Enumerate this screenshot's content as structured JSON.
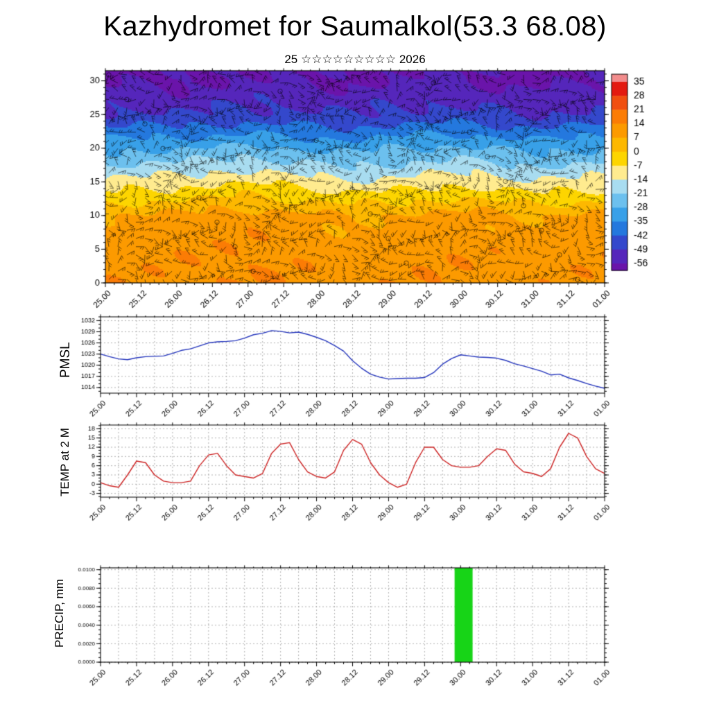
{
  "title": "Kazhydromet for Saumalkol(53.3 68.08)",
  "subtitle": "25 ☆☆☆☆☆☆☆☆☆ 2026",
  "time_axis": {
    "labels": [
      "25.00",
      "25.12",
      "26.00",
      "26.12",
      "27.00",
      "27.12",
      "28.00",
      "28.12",
      "29.00",
      "29.12",
      "30.00",
      "30.12",
      "31.00",
      "31.12",
      "01.00"
    ],
    "label_hours": [
      0,
      12,
      24,
      36,
      48,
      60,
      72,
      84,
      96,
      108,
      120,
      132,
      144,
      156,
      168
    ],
    "minor_step_hours": 3,
    "grid_step_hours": 6,
    "total_hours": 168
  },
  "chart_data": [
    {
      "id": "wind_temperature_section",
      "type": "heatmap",
      "description": "Time-height section, shading = temperature (C), overlaid wind barbs",
      "x_hours": [
        0,
        12,
        24,
        36,
        48,
        60,
        72,
        84,
        96,
        108,
        120,
        132,
        144,
        156,
        168
      ],
      "levels": [
        0,
        5,
        10,
        15,
        20,
        25,
        30
      ],
      "values_by_level": [
        [
          12,
          12,
          13,
          13,
          14,
          13,
          12,
          11,
          12,
          13,
          13,
          12,
          11,
          12,
          13
        ],
        [
          10,
          11,
          12,
          12,
          13,
          12,
          11,
          10,
          11,
          12,
          12,
          11,
          10,
          11,
          12
        ],
        [
          7,
          8,
          9,
          10,
          11,
          10,
          8,
          7,
          8,
          9,
          10,
          9,
          7,
          8,
          9
        ],
        [
          -12,
          -11,
          -10,
          -8,
          -7,
          -9,
          -11,
          -13,
          -12,
          -10,
          -9,
          -11,
          -13,
          -12,
          -11
        ],
        [
          -30,
          -29,
          -28,
          -27,
          -26,
          -28,
          -29,
          -30,
          -28,
          -27,
          -26,
          -28,
          -30,
          -29,
          -28
        ],
        [
          -48,
          -47,
          -49,
          -48,
          -46,
          -47,
          -48,
          -49,
          -47,
          -46,
          -47,
          -48,
          -49,
          -48,
          -47
        ],
        [
          -57,
          -57,
          -58,
          -56,
          -55,
          -56,
          -57,
          -57,
          -56,
          -55,
          -56,
          -57,
          -58,
          -57,
          -56
        ]
      ],
      "y_ticks": [
        0,
        5,
        10,
        15,
        20,
        25,
        30
      ],
      "y_range": [
        0,
        31.5
      ],
      "y_minor_step": 1,
      "y_label_size": 13,
      "y_tick_format": "int",
      "colorbar": {
        "boundaries": [
          35,
          28,
          21,
          14,
          7,
          0,
          -7,
          -14,
          -21,
          -28,
          -35,
          -42,
          -49,
          -56
        ],
        "colors": [
          "#f28c8c",
          "#e31a10",
          "#f04f10",
          "#fb7c05",
          "#fc9a00",
          "#fdb800",
          "#fdd500",
          "#ffeb8f",
          "#a8dcf0",
          "#6cc0ee",
          "#38a0e8",
          "#2478de",
          "#3448cc",
          "#5526bb",
          "#6a14aa"
        ]
      }
    },
    {
      "id": "pmsl",
      "type": "line",
      "label": "PMSL",
      "line_color": "#2233bb",
      "x_start_hour": 0,
      "x_step_hours": 3,
      "values": [
        1023,
        1022.3,
        1021.7,
        1021.5,
        1022,
        1022.3,
        1022.4,
        1022.5,
        1023.2,
        1024,
        1024.4,
        1025.2,
        1026,
        1026.3,
        1026.4,
        1026.6,
        1027.3,
        1028.2,
        1028.6,
        1029.3,
        1029.1,
        1028.7,
        1028.9,
        1028.3,
        1027.5,
        1026.6,
        1025.3,
        1023.8,
        1021.2,
        1019.2,
        1017.6,
        1016.8,
        1016.3,
        1016.4,
        1016.5,
        1016.5,
        1016.7,
        1018,
        1020.3,
        1021.8,
        1022.8,
        1022.5,
        1022.2,
        1022.1,
        1021.9,
        1021.3,
        1020.4,
        1019.8,
        1019.1,
        1018.4,
        1017.4,
        1017.6,
        1016.6,
        1015.9,
        1015.1,
        1014.4,
        1013.8
      ],
      "y_ticks": [
        1032,
        1029,
        1026,
        1023,
        1020,
        1017,
        1014
      ],
      "y_range": [
        1012.5,
        1033
      ],
      "y_minor_step": 1,
      "y_label_size": 9,
      "y_tick_format": "int"
    },
    {
      "id": "temp_2m",
      "type": "line",
      "label": "TEMP at 2 M",
      "line_color": "#cc2222",
      "x_start_hour": 0,
      "x_step_hours": 3,
      "values": [
        0.5,
        -0.5,
        -1,
        3,
        7.5,
        7,
        3,
        1,
        0.5,
        0.5,
        1,
        6,
        9.5,
        10,
        6,
        3,
        2.5,
        2,
        3.5,
        10,
        13,
        13.5,
        8,
        4,
        2.5,
        2,
        4,
        11,
        14.5,
        13,
        7,
        3,
        0.5,
        -1,
        0,
        7,
        12,
        12,
        8,
        6,
        5.5,
        5.5,
        6,
        9,
        11.5,
        11,
        6.5,
        4,
        3.5,
        2.5,
        5,
        12,
        16.5,
        15,
        9,
        5,
        3.5
      ],
      "y_ticks": [
        18,
        15,
        12,
        9,
        6,
        3,
        0,
        -3
      ],
      "y_range": [
        -4.2,
        19.2
      ],
      "y_minor_step": 1,
      "y_label_size": 9,
      "y_tick_format": "int"
    },
    {
      "id": "precip",
      "type": "bar",
      "label": "PRECIP, mm",
      "bar_color": "#17d417",
      "bars": [
        {
          "start_hour": 118,
          "end_hour": 124,
          "value": 0.0102
        }
      ],
      "y_ticks": [
        0.01,
        0.008,
        0.006,
        0.004,
        0.002,
        0.0
      ],
      "y_range": [
        0,
        0.0102
      ],
      "y_minor_step": 0.0005,
      "y_label_size": 8,
      "y_tick_format": "fixed4"
    }
  ]
}
